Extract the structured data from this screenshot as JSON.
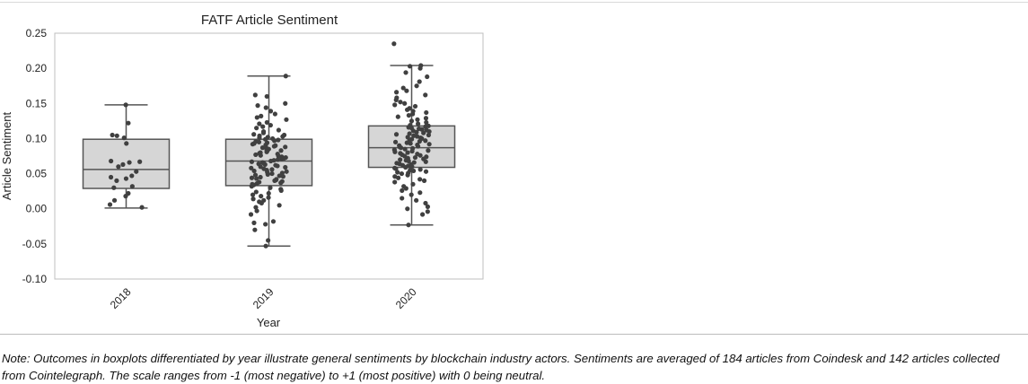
{
  "note": "Note: Outcomes in boxplots differentiated by year illustrate general sentiments by blockchain industry actors. Sentiments are averaged of 184 articles from Coindesk and 142 articles collected from Cointelegraph. The scale ranges from -1 (most negative) to +1 (most positive) with 0 being neutral.",
  "chart_data": {
    "type": "box",
    "title": "FATF Article Sentiment",
    "xlabel": "Year",
    "ylabel": "Article Sentiment",
    "ylim": [
      -0.1,
      0.25
    ],
    "yticks": [
      "0.25",
      "0.20",
      "0.15",
      "0.10",
      "0.05",
      "0.00",
      "-0.05",
      "-0.10"
    ],
    "categories": [
      "2018",
      "2019",
      "2020"
    ],
    "grid": false,
    "colors": {
      "box_fill": "#d6d6d6",
      "box_edge": "#555555",
      "points": "#404040"
    },
    "boxes": [
      {
        "category": "2018",
        "whisker_low": 0.001,
        "q1": 0.029,
        "median": 0.056,
        "q3": 0.099,
        "whisker_high": 0.148
      },
      {
        "category": "2019",
        "whisker_low": -0.053,
        "q1": 0.033,
        "median": 0.068,
        "q3": 0.099,
        "whisker_high": 0.189
      },
      {
        "category": "2020",
        "whisker_low": -0.023,
        "q1": 0.059,
        "median": 0.087,
        "q3": 0.118,
        "whisker_high": 0.204
      }
    ],
    "points": [
      {
        "category": "2018",
        "values": [
          0.148,
          0.122,
          0.105,
          0.104,
          0.101,
          0.093,
          0.068,
          0.067,
          0.066,
          0.063,
          0.06,
          0.053,
          0.047,
          0.045,
          0.043,
          0.04,
          0.032,
          0.03,
          0.022,
          0.018,
          0.012,
          0.006,
          0.002
        ]
      },
      {
        "category": "2019",
        "values": [
          0.189,
          0.162,
          0.16,
          0.15,
          0.147,
          0.144,
          0.139,
          0.135,
          0.132,
          0.13,
          0.127,
          0.123,
          0.121,
          0.119,
          0.117,
          0.115,
          0.112,
          0.11,
          0.108,
          0.106,
          0.105,
          0.104,
          0.103,
          0.102,
          0.101,
          0.1,
          0.099,
          0.098,
          0.097,
          0.096,
          0.095,
          0.094,
          0.093,
          0.092,
          0.091,
          0.09,
          0.089,
          0.088,
          0.087,
          0.086,
          0.085,
          0.084,
          0.083,
          0.082,
          0.081,
          0.08,
          0.079,
          0.078,
          0.077,
          0.076,
          0.075,
          0.074,
          0.073,
          0.072,
          0.071,
          0.07,
          0.069,
          0.068,
          0.067,
          0.066,
          0.065,
          0.064,
          0.063,
          0.062,
          0.061,
          0.06,
          0.059,
          0.058,
          0.057,
          0.056,
          0.055,
          0.054,
          0.053,
          0.052,
          0.051,
          0.05,
          0.049,
          0.048,
          0.047,
          0.046,
          0.045,
          0.044,
          0.043,
          0.042,
          0.041,
          0.04,
          0.039,
          0.038,
          0.037,
          0.036,
          0.035,
          0.034,
          0.032,
          0.03,
          0.028,
          0.026,
          0.024,
          0.022,
          0.02,
          0.018,
          0.016,
          0.014,
          0.012,
          0.01,
          0.008,
          0.005,
          0.002,
          -0.003,
          -0.008,
          -0.018,
          -0.02,
          -0.022,
          -0.03,
          -0.045,
          -0.053
        ]
      },
      {
        "category": "2020",
        "values": [
          0.235,
          0.204,
          0.203,
          0.2,
          0.194,
          0.188,
          0.181,
          0.175,
          0.172,
          0.168,
          0.166,
          0.162,
          0.158,
          0.155,
          0.152,
          0.15,
          0.148,
          0.146,
          0.143,
          0.141,
          0.139,
          0.137,
          0.135,
          0.133,
          0.131,
          0.129,
          0.127,
          0.125,
          0.123,
          0.121,
          0.119,
          0.118,
          0.117,
          0.116,
          0.115,
          0.114,
          0.113,
          0.112,
          0.111,
          0.11,
          0.109,
          0.108,
          0.107,
          0.106,
          0.105,
          0.104,
          0.103,
          0.102,
          0.101,
          0.1,
          0.099,
          0.098,
          0.097,
          0.096,
          0.095,
          0.094,
          0.093,
          0.092,
          0.091,
          0.09,
          0.089,
          0.088,
          0.087,
          0.086,
          0.085,
          0.084,
          0.083,
          0.082,
          0.081,
          0.08,
          0.079,
          0.078,
          0.077,
          0.076,
          0.075,
          0.074,
          0.073,
          0.072,
          0.071,
          0.07,
          0.069,
          0.068,
          0.067,
          0.066,
          0.065,
          0.064,
          0.063,
          0.062,
          0.061,
          0.06,
          0.059,
          0.058,
          0.057,
          0.056,
          0.055,
          0.054,
          0.053,
          0.052,
          0.051,
          0.05,
          0.048,
          0.046,
          0.044,
          0.042,
          0.04,
          0.038,
          0.035,
          0.032,
          0.029,
          0.026,
          0.023,
          0.02,
          0.015,
          0.012,
          0.008,
          0.003,
          0.0,
          -0.004,
          -0.008,
          -0.023
        ]
      }
    ]
  }
}
